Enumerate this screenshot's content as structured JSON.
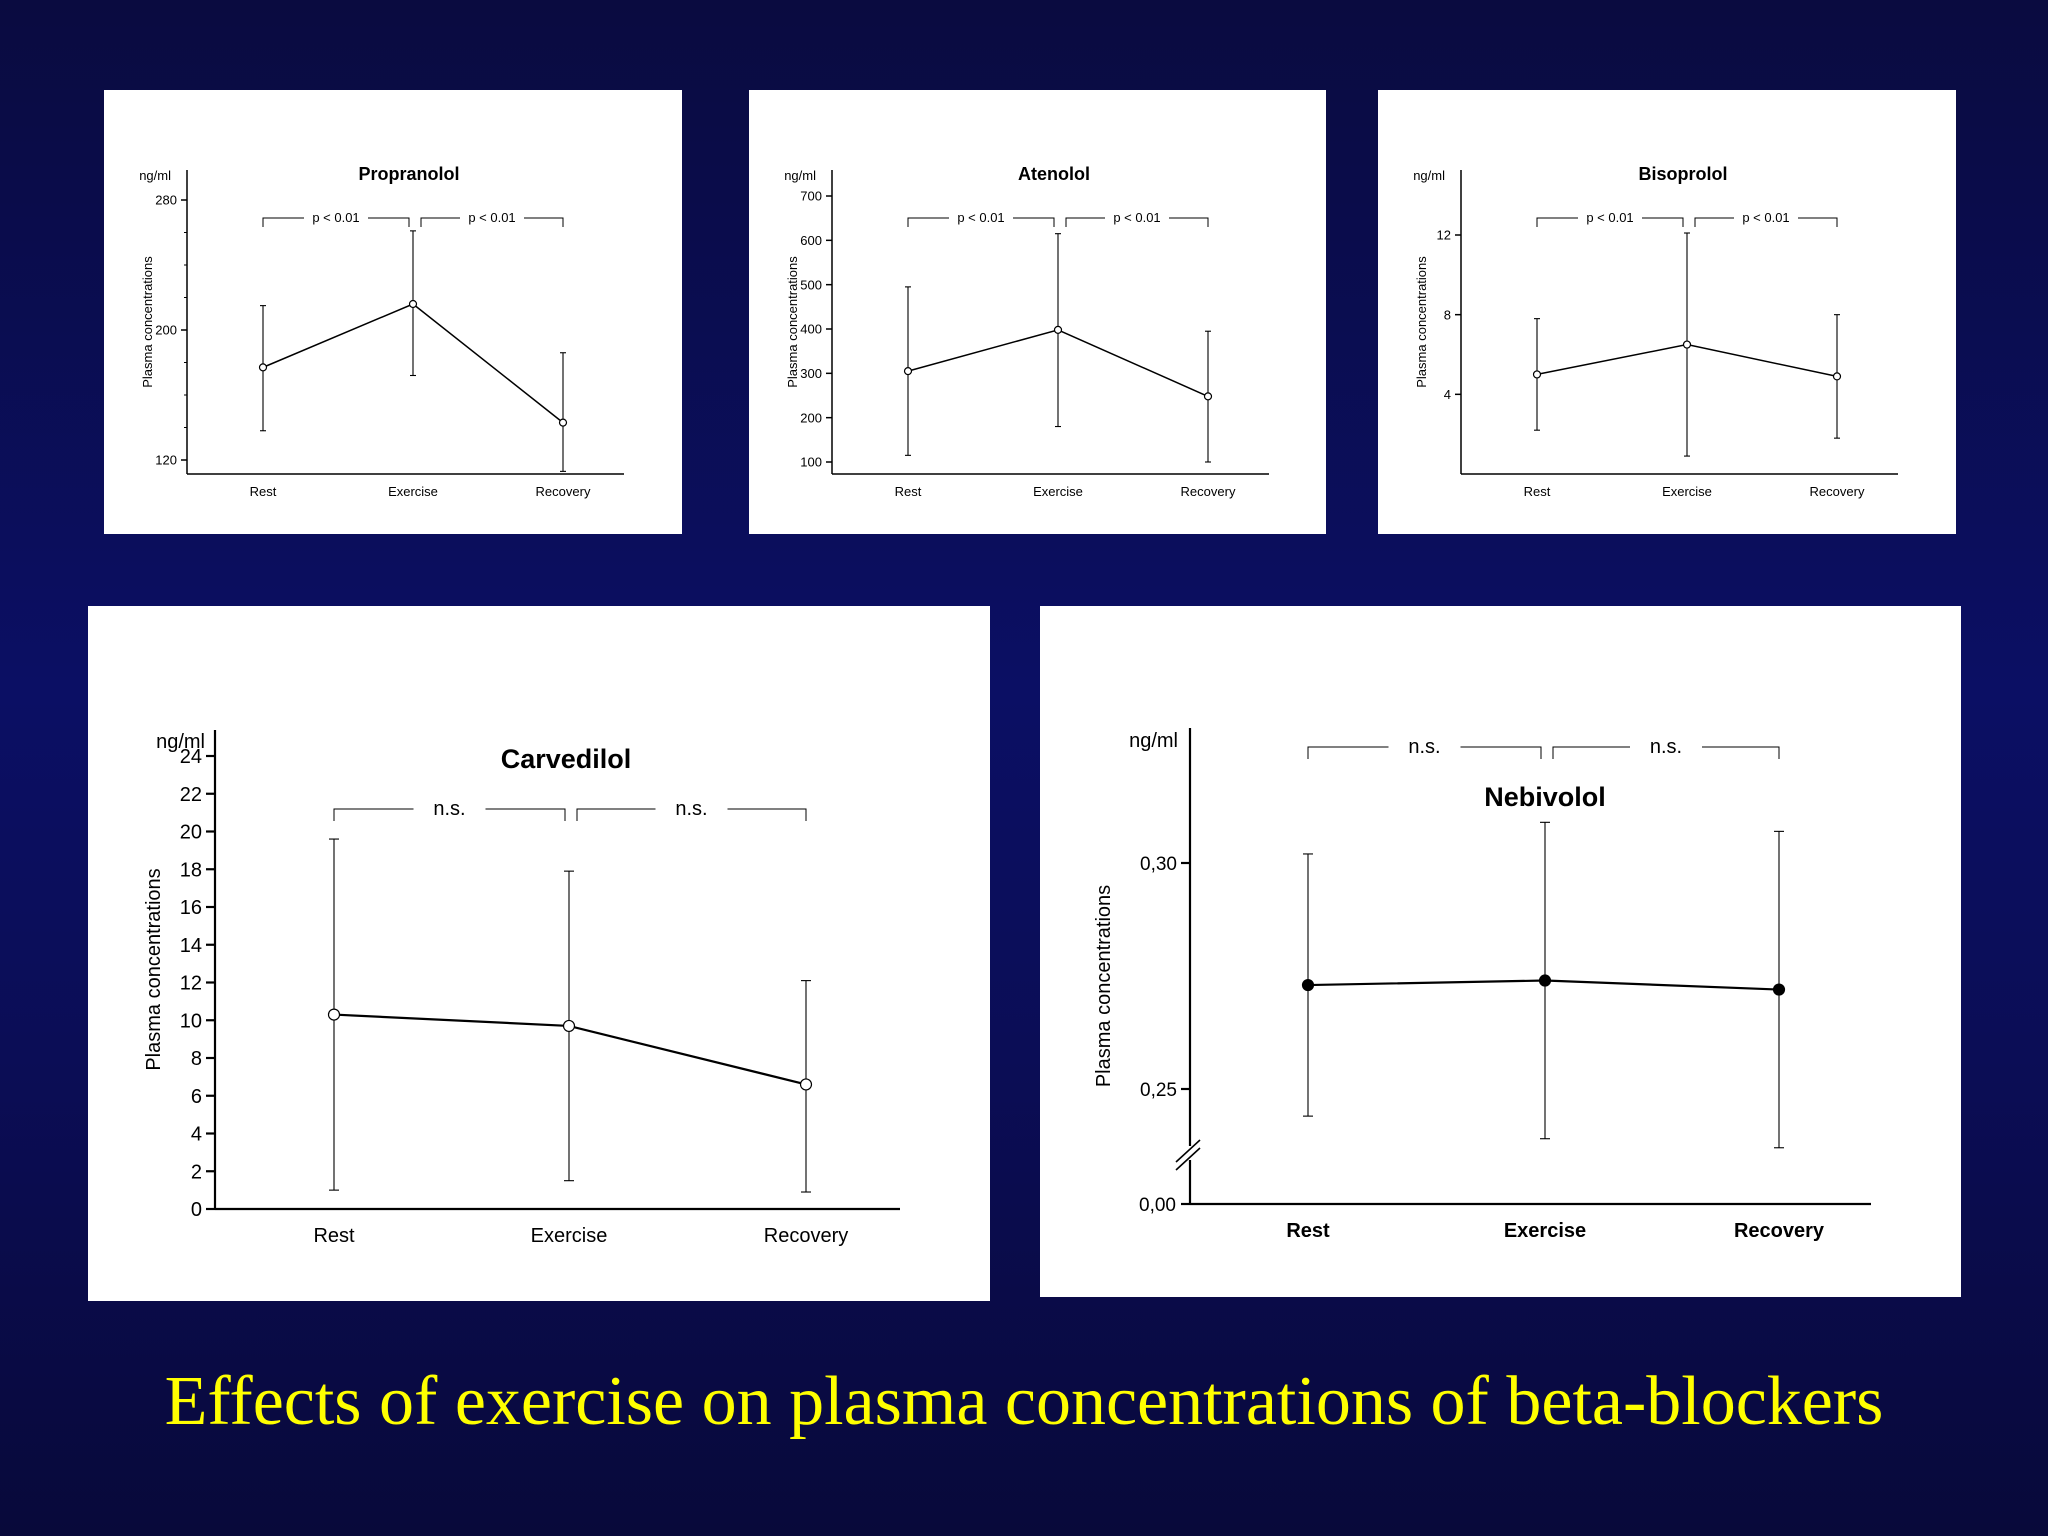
{
  "page_title": "Effects of exercise on plasma concentrations of beta-blockers",
  "chart_data": [
    {
      "type": "line",
      "title": "Propranolol",
      "unit_label": "ng/ml",
      "ylabel": "Plasma concentrations",
      "categories": [
        "Rest",
        "Exercise",
        "Recovery"
      ],
      "series": [
        {
          "values": [
            177,
            216,
            143
          ],
          "error_low": [
            138,
            172,
            113
          ],
          "error_high": [
            215,
            261,
            186
          ]
        }
      ],
      "ylim": [
        120,
        280
      ],
      "yticks": [
        120,
        200,
        280
      ],
      "ytick_labels": [
        "120",
        "200",
        "280"
      ],
      "minor_ticks": true,
      "axis_break": false,
      "marker": "open",
      "brackets": [
        {
          "from": 0,
          "to": 1,
          "label": "p < 0.01"
        },
        {
          "from": 1,
          "to": 2,
          "label": "p < 0.01"
        }
      ]
    },
    {
      "type": "line",
      "title": "Atenolol",
      "unit_label": "ng/ml",
      "ylabel": "Plasma concentrations",
      "categories": [
        "Rest",
        "Exercise",
        "Recovery"
      ],
      "series": [
        {
          "values": [
            305,
            398,
            248
          ],
          "error_low": [
            115,
            180,
            100
          ],
          "error_high": [
            495,
            615,
            395
          ]
        }
      ],
      "ylim": [
        75,
        725
      ],
      "yticks": [
        100,
        200,
        300,
        400,
        500,
        600,
        700
      ],
      "ytick_labels": [
        "100",
        "200",
        "300",
        "400",
        "500",
        "600",
        "700"
      ],
      "minor_ticks": false,
      "axis_break": false,
      "marker": "open",
      "brackets": [
        {
          "from": 0,
          "to": 1,
          "label": "p < 0.01"
        },
        {
          "from": 1,
          "to": 2,
          "label": "p < 0.01"
        }
      ]
    },
    {
      "type": "line",
      "title": "Bisoprolol",
      "unit_label": "ng/ml",
      "ylabel": "Plasma concentrations",
      "categories": [
        "Rest",
        "Exercise",
        "Recovery"
      ],
      "series": [
        {
          "values": [
            5.0,
            6.5,
            4.9
          ],
          "error_low": [
            2.2,
            0.9,
            1.8
          ],
          "error_high": [
            7.8,
            12.1,
            8.0
          ]
        }
      ],
      "ylim": [
        0,
        15.3
      ],
      "yticks": [
        4,
        8,
        12
      ],
      "ytick_labels": [
        "4",
        "8",
        "12"
      ],
      "minor_ticks": false,
      "axis_break": false,
      "marker": "open",
      "brackets": [
        {
          "from": 0,
          "to": 1,
          "label": "p < 0.01"
        },
        {
          "from": 1,
          "to": 2,
          "label": "p < 0.01"
        }
      ]
    },
    {
      "type": "line",
      "title": "Carvedilol",
      "unit_label": "ng/ml",
      "ylabel": "Plasma concentrations",
      "categories": [
        "Rest",
        "Exercise",
        "Recovery"
      ],
      "series": [
        {
          "values": [
            10.3,
            9.7,
            6.6
          ],
          "error_low": [
            1.0,
            1.5,
            0.9
          ],
          "error_high": [
            19.6,
            17.9,
            12.1
          ]
        }
      ],
      "ylim": [
        0,
        25.5
      ],
      "yticks": [
        0,
        2,
        4,
        6,
        8,
        10,
        12,
        14,
        16,
        18,
        20,
        22,
        24
      ],
      "ytick_labels": [
        "0",
        "2",
        "4",
        "6",
        "8",
        "10",
        "12",
        "14",
        "16",
        "18",
        "20",
        "22",
        "24"
      ],
      "minor_ticks": false,
      "axis_break": false,
      "marker": "open",
      "brackets": [
        {
          "from": 0,
          "to": 1,
          "label": "n.s."
        },
        {
          "from": 1,
          "to": 2,
          "label": "n.s."
        }
      ]
    },
    {
      "type": "line",
      "title": "Nebivolol",
      "unit_label": "ng/ml",
      "ylabel": "Plasma concentrations",
      "categories": [
        "Rest",
        "Exercise",
        "Recovery"
      ],
      "series": [
        {
          "values": [
            0.273,
            0.274,
            0.272
          ],
          "error_low": [
            0.244,
            0.239,
            0.237
          ],
          "error_high": [
            0.302,
            0.309,
            0.307
          ]
        }
      ],
      "ylim": [
        0.225,
        0.32
      ],
      "yticks": [
        0.25,
        0.3
      ],
      "ytick_labels": [
        "0,25",
        "0,30"
      ],
      "minor_ticks": false,
      "axis_break": true,
      "zero_label": "0,00",
      "marker": "filled",
      "brackets": [
        {
          "from": 0,
          "to": 1,
          "label": "n.s."
        },
        {
          "from": 1,
          "to": 2,
          "label": "n.s."
        }
      ]
    }
  ]
}
